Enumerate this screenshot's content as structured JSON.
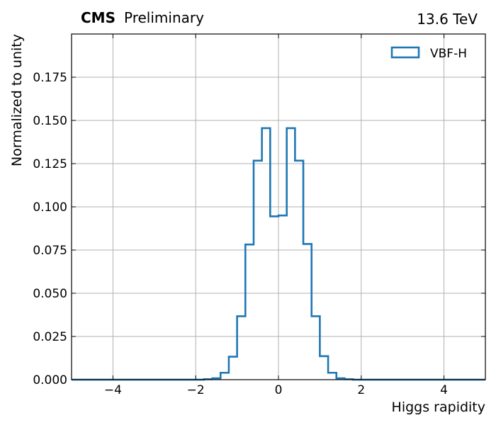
{
  "header": {
    "experiment": "CMS",
    "status": "Preliminary",
    "energy": "13.6 TeV"
  },
  "chart_data": {
    "type": "histogram",
    "xlabel": "Higgs rapidity",
    "ylabel": "Normalized to unity",
    "xlim": [
      -5,
      5
    ],
    "ylim": [
      0,
      0.2
    ],
    "xticks": [
      -4,
      -2,
      0,
      2,
      4
    ],
    "yticks": [
      0.0,
      0.025,
      0.05,
      0.075,
      0.1,
      0.125,
      0.15,
      0.175
    ],
    "grid": true,
    "legend_position": "top-right",
    "bin_edges": [
      -5.0,
      -4.8,
      -4.6,
      -4.4,
      -4.2,
      -4.0,
      -3.8,
      -3.6,
      -3.4,
      -3.2,
      -3.0,
      -2.8,
      -2.6,
      -2.4,
      -2.2,
      -2.0,
      -1.8,
      -1.6,
      -1.4,
      -1.2,
      -1.0,
      -0.8,
      -0.6,
      -0.4,
      -0.2,
      0.0,
      0.2,
      0.4,
      0.6,
      0.8,
      1.0,
      1.2,
      1.4,
      1.6,
      1.8,
      2.0,
      2.2,
      2.4,
      2.6,
      2.8,
      3.0,
      3.2,
      3.4,
      3.6,
      3.8,
      4.0,
      4.2,
      4.4,
      4.6,
      4.8,
      5.0
    ],
    "series": [
      {
        "name": "VBF-H",
        "color": "#1f77b4",
        "values": [
          0,
          0,
          0,
          0,
          0,
          0,
          0,
          0,
          0,
          0,
          0,
          0,
          0,
          0,
          0,
          0,
          0.0003,
          0.0008,
          0.004,
          0.0133,
          0.0367,
          0.0782,
          0.1267,
          0.1455,
          0.0945,
          0.095,
          0.1455,
          0.1267,
          0.0785,
          0.0367,
          0.0136,
          0.004,
          0.0008,
          0.0003,
          0,
          0,
          0,
          0,
          0,
          0,
          0,
          0,
          0,
          0,
          0,
          0,
          0,
          0,
          0,
          0
        ]
      }
    ]
  }
}
